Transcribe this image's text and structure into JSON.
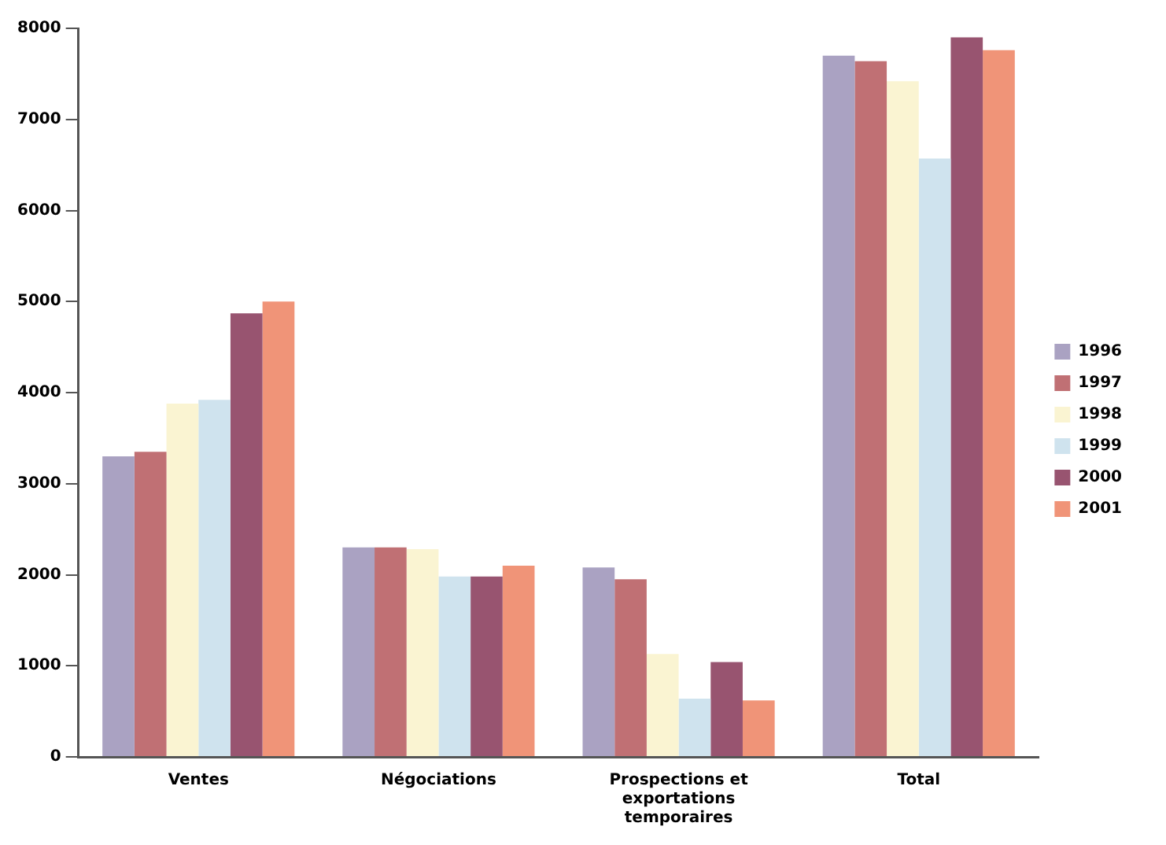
{
  "chart_data": {
    "type": "bar",
    "categories": [
      "Ventes",
      "Négociations",
      "Prospections et exportations temporaires",
      "Total"
    ],
    "series": [
      {
        "name": "1996",
        "color": "#aaa2c2",
        "values": [
          3300,
          2300,
          2080,
          7700
        ]
      },
      {
        "name": "1997",
        "color": "#c07074",
        "values": [
          3350,
          2300,
          1950,
          7640
        ]
      },
      {
        "name": "1998",
        "color": "#faf4d2",
        "values": [
          3880,
          2280,
          1130,
          7420
        ]
      },
      {
        "name": "1999",
        "color": "#cfe3ee",
        "values": [
          3920,
          1980,
          640,
          6570
        ]
      },
      {
        "name": "2000",
        "color": "#985470",
        "values": [
          4870,
          1980,
          1040,
          7900
        ]
      },
      {
        "name": "2001",
        "color": "#f09478",
        "values": [
          5000,
          2100,
          620,
          7760
        ]
      }
    ],
    "ylim": [
      0,
      8000
    ],
    "yticks": [
      0,
      1000,
      2000,
      3000,
      4000,
      5000,
      6000,
      7000,
      8000
    ],
    "grid": false,
    "legend": "right"
  }
}
